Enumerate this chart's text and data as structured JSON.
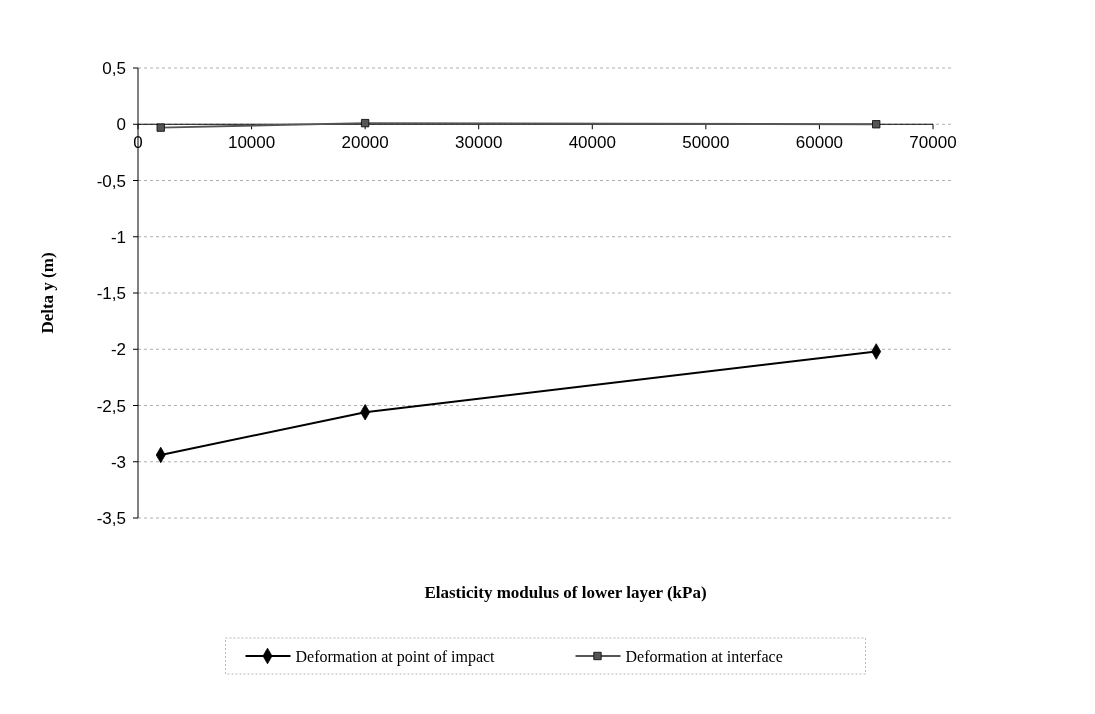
{
  "chart_data": {
    "type": "line",
    "xlabel": "Elasticity modulus of lower layer (kPa)",
    "ylabel": "Delta y (m)",
    "xlim": [
      0,
      70000
    ],
    "xticks": [
      0,
      10000,
      20000,
      30000,
      40000,
      50000,
      60000,
      70000
    ],
    "ylim": [
      -3.5,
      0.5
    ],
    "yticks": [
      {
        "value": 0.5,
        "label": "0,5"
      },
      0,
      {
        "value": -0.5,
        "label": "-0,5"
      },
      -1,
      {
        "value": -1.5,
        "label": "-1,5"
      },
      -2,
      {
        "value": -2.5,
        "label": "-2,5"
      },
      -3,
      {
        "value": -3.5,
        "label": "-3,5"
      }
    ],
    "grid": "y",
    "legend": "bottom",
    "line_style": "solid",
    "series": [
      {
        "name": "Deformation at point of impact",
        "color": "#000000",
        "marker": "diamond",
        "x": [
          2000,
          20000,
          65000
        ],
        "values": [
          -2.94,
          -2.56,
          -2.02
        ]
      },
      {
        "name": "Deformation at interface",
        "color": "#555555",
        "marker": "square",
        "x": [
          2000,
          20000,
          65000
        ],
        "values": [
          -0.03,
          0.01,
          0
        ]
      }
    ]
  }
}
